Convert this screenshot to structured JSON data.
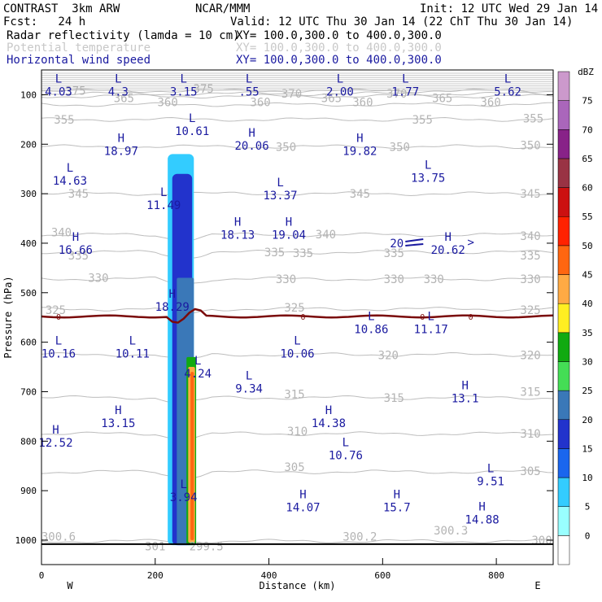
{
  "header": {
    "model": "CONTRAST  3km ARW",
    "org": "NCAR/MMM",
    "init": "Init: 12 UTC Wed 29 Jan 14",
    "fcst": "Fcst:   24 h",
    "valid": "Valid: 12 UTC Thu 30 Jan 14 (22 ChT Thu 30 Jan 14)",
    "fields": [
      {
        "name": "Radar reflectivity (lamda = 10 cm)",
        "xy": "XY= 100.0,300.0 to 400.0,300.0",
        "color": "#000000"
      },
      {
        "name": "Potential temperature",
        "xy": "XY= 100.0,300.0 to 400.0,300.0",
        "color": "#c8c8c8"
      },
      {
        "name": "Horizontal wind speed",
        "xy": "XY= 100.0,300.0 to 400.0,300.0",
        "color": "#1a1aa0"
      }
    ]
  },
  "chart_data": {
    "type": "cross-section",
    "xlabel": "Distance (km)",
    "ylabel": "Pressure (hPa)",
    "xlim": [
      0,
      900
    ],
    "ylim": [
      1000,
      50
    ],
    "x_ticks": [
      0,
      200,
      400,
      600,
      800
    ],
    "y_ticks": [
      100,
      200,
      300,
      400,
      500,
      600,
      700,
      800,
      900,
      1000
    ],
    "direction_labels": [
      "W",
      "E"
    ],
    "colorbar": {
      "unit": "dBZ",
      "levels": [
        0,
        5,
        10,
        15,
        20,
        25,
        30,
        35,
        40,
        45,
        50,
        55,
        60,
        65,
        70,
        75
      ],
      "colors": [
        "#ffffff",
        "#99ffff",
        "#33ccff",
        "#1a66ee",
        "#2233cc",
        "#3a78b8",
        "#44dd55",
        "#11aa11",
        "#ffee22",
        "#ffaa44",
        "#ff6611",
        "#ff2200",
        "#cc1111",
        "#993344",
        "#882288",
        "#aa66bb",
        "#cc99cc"
      ]
    },
    "theta_lines": [
      {
        "value": 300,
        "p": 1002
      },
      {
        "value": 305,
        "p": 862
      },
      {
        "value": 310,
        "p": 785
      },
      {
        "value": 315,
        "p": 712
      },
      {
        "value": 320,
        "p": 625
      },
      {
        "value": 325,
        "p": 533
      },
      {
        "value": 330,
        "p": 472
      },
      {
        "value": 335,
        "p": 418
      },
      {
        "value": 340,
        "p": 383
      },
      {
        "value": 345,
        "p": 300
      },
      {
        "value": 350,
        "p": 205
      },
      {
        "value": 355,
        "p": 150
      },
      {
        "value": 360,
        "p": 120
      },
      {
        "value": 365,
        "p": 103
      },
      {
        "value": 370,
        "p": 98
      },
      {
        "value": 375,
        "p": 92
      }
    ],
    "theta_labels": [
      {
        "text": "375",
        "x": 60,
        "p": 92
      },
      {
        "text": "365",
        "x": 145,
        "p": 107
      },
      {
        "text": "360",
        "x": 222,
        "p": 115
      },
      {
        "text": "375",
        "x": 285,
        "p": 88
      },
      {
        "text": "360",
        "x": 385,
        "p": 115
      },
      {
        "text": "370",
        "x": 440,
        "p": 98
      },
      {
        "text": "365",
        "x": 510,
        "p": 107
      },
      {
        "text": "360",
        "x": 565,
        "p": 115
      },
      {
        "text": "370",
        "x": 625,
        "p": 98
      },
      {
        "text": "365",
        "x": 705,
        "p": 107
      },
      {
        "text": "360",
        "x": 790,
        "p": 115
      },
      {
        "text": "355",
        "x": 40,
        "p": 150
      },
      {
        "text": "355",
        "x": 670,
        "p": 150
      },
      {
        "text": "355",
        "x": 865,
        "p": 148
      },
      {
        "text": "350",
        "x": 430,
        "p": 205
      },
      {
        "text": "350",
        "x": 630,
        "p": 205
      },
      {
        "text": "350",
        "x": 860,
        "p": 202
      },
      {
        "text": "345",
        "x": 65,
        "p": 300
      },
      {
        "text": "345",
        "x": 560,
        "p": 300
      },
      {
        "text": "345",
        "x": 860,
        "p": 300
      },
      {
        "text": "340",
        "x": 35,
        "p": 378
      },
      {
        "text": "340",
        "x": 500,
        "p": 382
      },
      {
        "text": "340",
        "x": 860,
        "p": 385
      },
      {
        "text": "335",
        "x": 65,
        "p": 425
      },
      {
        "text": "335",
        "x": 410,
        "p": 418
      },
      {
        "text": "335",
        "x": 460,
        "p": 420
      },
      {
        "text": "335",
        "x": 620,
        "p": 420
      },
      {
        "text": "335",
        "x": 860,
        "p": 425
      },
      {
        "text": "330",
        "x": 100,
        "p": 470
      },
      {
        "text": "330",
        "x": 430,
        "p": 472
      },
      {
        "text": "330",
        "x": 620,
        "p": 472
      },
      {
        "text": "330",
        "x": 690,
        "p": 472
      },
      {
        "text": "330",
        "x": 860,
        "p": 472
      },
      {
        "text": "325",
        "x": 25,
        "p": 535
      },
      {
        "text": "325",
        "x": 445,
        "p": 530
      },
      {
        "text": "325",
        "x": 860,
        "p": 535
      },
      {
        "text": "320",
        "x": 610,
        "p": 626
      },
      {
        "text": "320",
        "x": 860,
        "p": 626
      },
      {
        "text": "315",
        "x": 445,
        "p": 705
      },
      {
        "text": "315",
        "x": 620,
        "p": 712
      },
      {
        "text": "315",
        "x": 860,
        "p": 700
      },
      {
        "text": "310",
        "x": 450,
        "p": 780
      },
      {
        "text": "310",
        "x": 860,
        "p": 785
      },
      {
        "text": "305",
        "x": 445,
        "p": 852
      },
      {
        "text": "305",
        "x": 860,
        "p": 860
      },
      {
        "text": "300.6",
        "x": 30,
        "p": 993
      },
      {
        "text": "301",
        "x": 200,
        "p": 1012
      },
      {
        "text": "299.5",
        "x": 290,
        "p": 1012
      },
      {
        "text": "300.2",
        "x": 560,
        "p": 993
      },
      {
        "text": "300.3",
        "x": 720,
        "p": 980
      },
      {
        "text": "300",
        "x": 880,
        "p": 1000
      }
    ],
    "freezing_level": {
      "label": "0",
      "p": 548
    },
    "wind_extrema": [
      {
        "type": "L",
        "value": "4.03",
        "x": 30,
        "p": 80
      },
      {
        "type": "L",
        "value": "4.3",
        "x": 135,
        "p": 80
      },
      {
        "type": "L",
        "value": "3.15",
        "x": 250,
        "p": 80
      },
      {
        "type": "L",
        "value": ".55",
        "x": 365,
        "p": 80
      },
      {
        "type": "L",
        "value": "2.00",
        "x": 525,
        "p": 80
      },
      {
        "type": "L",
        "value": "1.77",
        "x": 640,
        "p": 80
      },
      {
        "type": "L",
        "value": "5.62",
        "x": 820,
        "p": 80
      },
      {
        "type": "L",
        "value": "10.61",
        "x": 265,
        "p": 160
      },
      {
        "type": "H",
        "value": "18.97",
        "x": 140,
        "p": 200
      },
      {
        "type": "H",
        "value": "20.06",
        "x": 370,
        "p": 190
      },
      {
        "type": "H",
        "value": "19.82",
        "x": 560,
        "p": 200
      },
      {
        "type": "L",
        "value": "14.63",
        "x": 50,
        "p": 260
      },
      {
        "type": "L",
        "value": "13.75",
        "x": 680,
        "p": 255
      },
      {
        "type": "L",
        "value": "11.49",
        "x": 215,
        "p": 310
      },
      {
        "type": "L",
        "value": "13.37",
        "x": 420,
        "p": 290
      },
      {
        "type": "H",
        "value": "18.13",
        "x": 345,
        "p": 370
      },
      {
        "type": "H",
        "value": "19.04",
        "x": 435,
        "p": 370
      },
      {
        "type": "H",
        "value": "16.66",
        "x": 60,
        "p": 400
      },
      {
        "type": "H",
        "value": "20.62",
        "x": 715,
        "p": 400
      },
      {
        "type": "H",
        "value": "18.29",
        "x": 230,
        "p": 515
      },
      {
        "type": "L",
        "value": "10.86",
        "x": 580,
        "p": 560
      },
      {
        "type": "L",
        "value": "11.17",
        "x": 685,
        "p": 560
      },
      {
        "type": "L",
        "value": "10.16",
        "x": 30,
        "p": 610
      },
      {
        "type": "L",
        "value": "10.11",
        "x": 160,
        "p": 610
      },
      {
        "type": "L",
        "value": "10.06",
        "x": 450,
        "p": 610
      },
      {
        "type": "L",
        "value": "4.24",
        "x": 275,
        "p": 650
      },
      {
        "type": "L",
        "value": "9.34",
        "x": 365,
        "p": 680
      },
      {
        "type": "H",
        "value": "13.1",
        "x": 745,
        "p": 700
      },
      {
        "type": "H",
        "value": "13.15",
        "x": 135,
        "p": 750
      },
      {
        "type": "H",
        "value": "14.38",
        "x": 505,
        "p": 750
      },
      {
        "type": "H",
        "value": "12.52",
        "x": 25,
        "p": 790
      },
      {
        "type": "L",
        "value": "10.76",
        "x": 535,
        "p": 815
      },
      {
        "type": "L",
        "value": "9.51",
        "x": 790,
        "p": 868
      },
      {
        "type": "L",
        "value": "3.94",
        "x": 250,
        "p": 900
      },
      {
        "type": "H",
        "value": "14.07",
        "x": 460,
        "p": 920
      },
      {
        "type": "H",
        "value": "15.7",
        "x": 625,
        "p": 920
      },
      {
        "type": "H",
        "value": "14.88",
        "x": 775,
        "p": 945
      }
    ],
    "annotations": [
      {
        "text": "20",
        "x": 625,
        "p": 400
      },
      {
        "text": ">",
        "x": 755,
        "p": 398
      }
    ],
    "reflectivity_columns": [
      {
        "x1": 222,
        "x2": 268,
        "p_top": 220,
        "p_bot": 1010,
        "dbz": 5
      },
      {
        "x1": 230,
        "x2": 265,
        "p_top": 260,
        "p_bot": 1010,
        "dbz": 15
      },
      {
        "x1": 238,
        "x2": 268,
        "p_top": 470,
        "p_bot": 1010,
        "dbz": 20
      },
      {
        "x1": 255,
        "x2": 272,
        "p_top": 630,
        "p_bot": 1010,
        "dbz": 30
      },
      {
        "x1": 258,
        "x2": 270,
        "p_top": 650,
        "p_bot": 1005,
        "dbz": 40
      },
      {
        "x1": 262,
        "x2": 268,
        "p_top": 660,
        "p_bot": 1000,
        "dbz": 45
      }
    ]
  }
}
